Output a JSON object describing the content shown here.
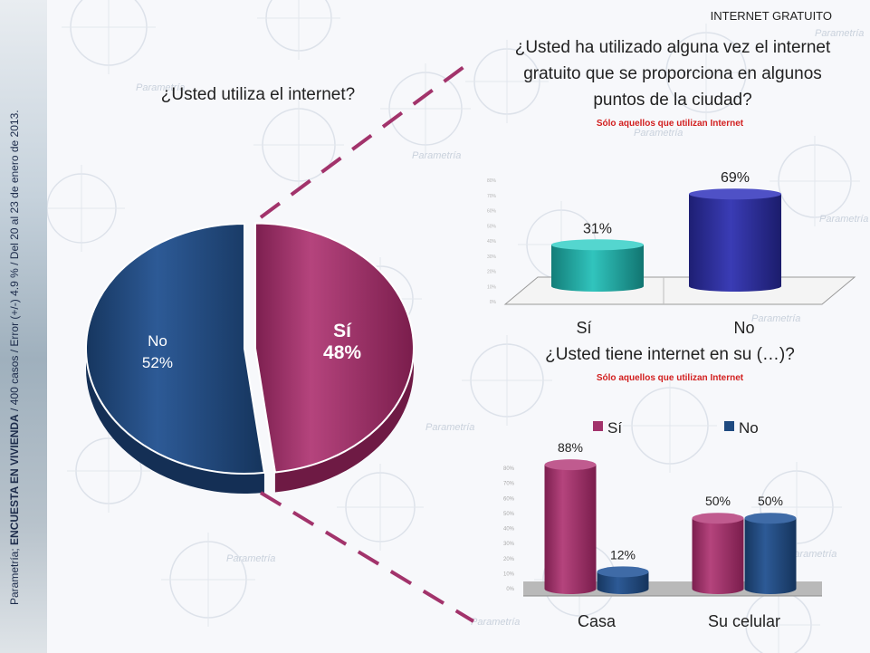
{
  "header": {
    "section": "INTERNET GRATUITO"
  },
  "side_note": {
    "prefix": "Parametría; ",
    "survey": "ENCUESTA EN VIVIENDA",
    "rest": " / 400 casos / Error (+/-) 4.9 % / Del 20 al 23  de enero de 2013."
  },
  "watermark": "Parametría",
  "colors": {
    "si": "#a2336b",
    "no": "#1f4a80",
    "teal": "#1fa6a0",
    "navy": "#2b2d97",
    "note": "#d21f1f"
  },
  "questions": {
    "q1": "¿Usted utiliza el internet?",
    "q2_lines": [
      "¿Usted ha utilizado alguna vez el internet",
      "gratuito que se proporciona en algunos",
      "puntos de la ciudad?"
    ],
    "q2_note": "Sólo aquellos que utilizan Internet",
    "q3": "¿Usted tiene internet en su (…)?",
    "q3_note": "Sólo aquellos que utilizan Internet"
  },
  "chart_data": [
    {
      "type": "pie",
      "title": "¿Usted utiliza el internet?",
      "slices": [
        {
          "label": "Sí",
          "value": 48,
          "display": "48%"
        },
        {
          "label": "No",
          "value": 52,
          "display": "52%"
        }
      ]
    },
    {
      "type": "bar",
      "title": "¿Usted ha utilizado alguna vez el internet gratuito que se proporciona en algunos puntos de la ciudad?",
      "categories": [
        "Sí",
        "No"
      ],
      "values": [
        31,
        69
      ],
      "labels": [
        "31%",
        "69%"
      ],
      "ylim": [
        0,
        80
      ]
    },
    {
      "type": "bar",
      "title": "¿Usted tiene internet en su (…)?",
      "categories": [
        "Casa",
        "Su celular"
      ],
      "series": [
        {
          "name": "Sí",
          "values": [
            88,
            50
          ],
          "labels": [
            "88%",
            "50%"
          ]
        },
        {
          "name": "No",
          "values": [
            12,
            50
          ],
          "labels": [
            "12%",
            "50%"
          ]
        }
      ],
      "ylim": [
        0,
        90
      ],
      "yticks": [
        "0%",
        "10%",
        "20%",
        "30%",
        "40%",
        "50%",
        "60%",
        "70%",
        "80%"
      ],
      "legend": "top"
    }
  ]
}
